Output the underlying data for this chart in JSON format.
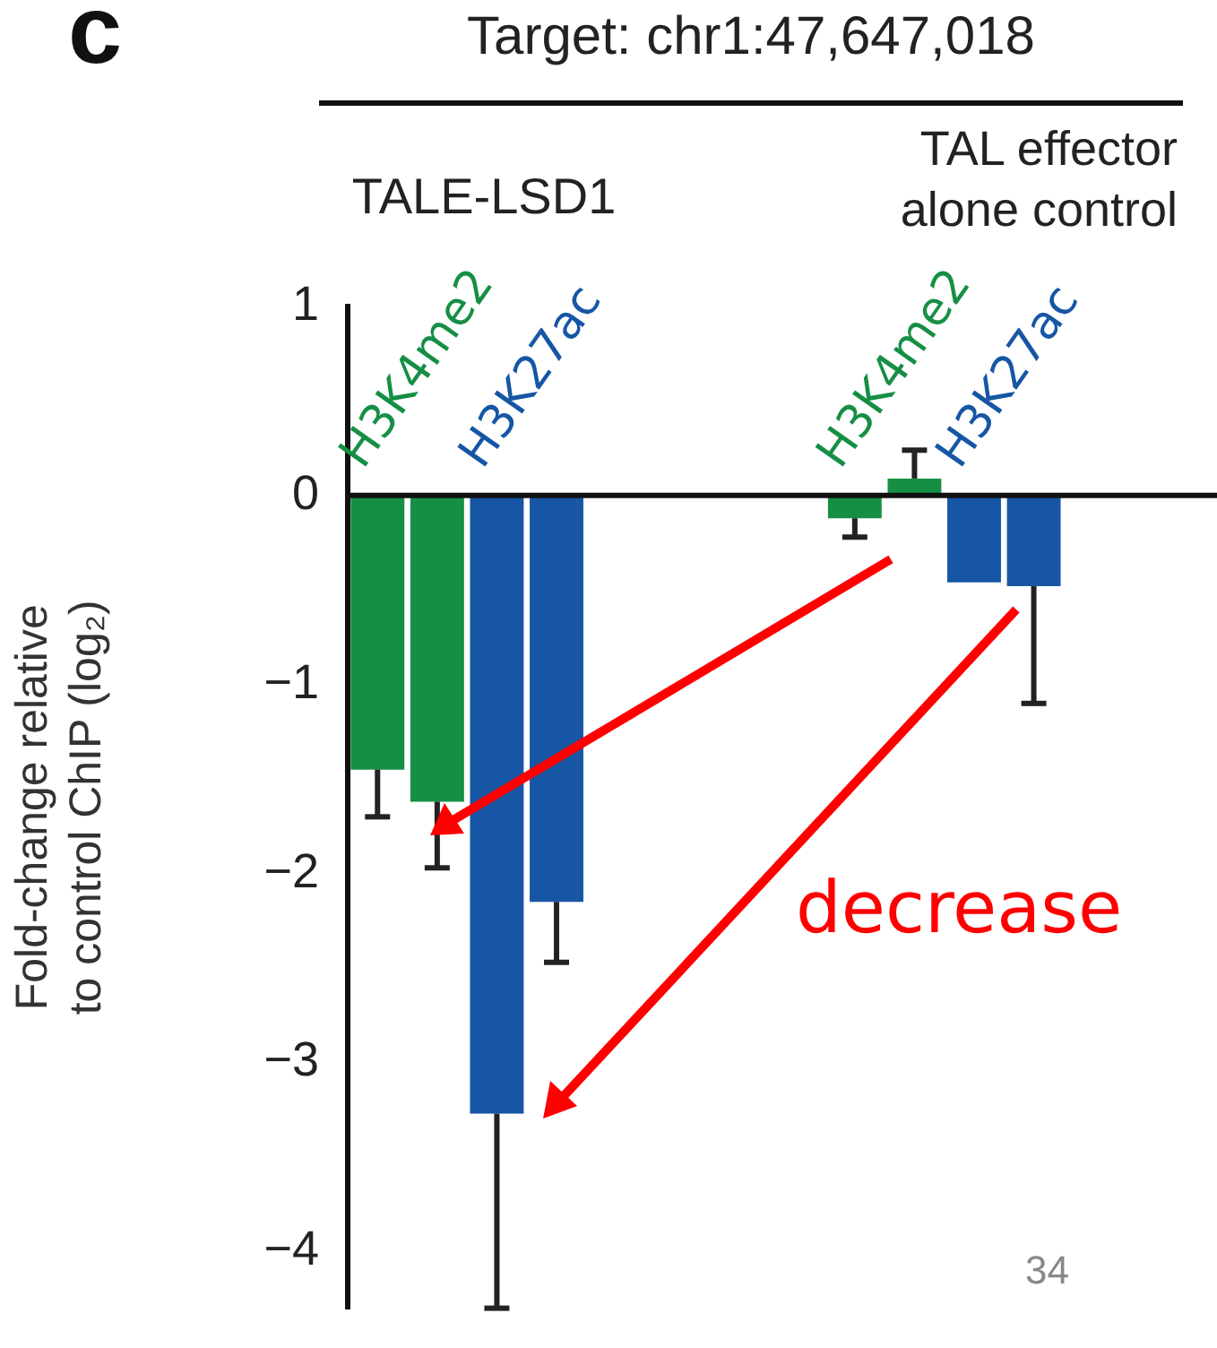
{
  "chart_data": {
    "type": "bar",
    "title": "Target: chr1:47,647,018",
    "ylabel": "Fold-change relative\nto control ChIP (log₂)",
    "categories": [
      null,
      null,
      null,
      null,
      null,
      null,
      null,
      null,
      null,
      null,
      null,
      null,
      null,
      null
    ],
    "series": [
      {
        "name": "H3K4me2",
        "color": "#168f45",
        "values": [
          -1.45,
          -1.62,
          null,
          null,
          null,
          null,
          null,
          null,
          -0.12,
          0.09,
          null,
          null,
          null,
          null
        ],
        "errors": [
          [
            -1.7,
            -1.45
          ],
          [
            -1.97,
            -1.62
          ],
          null,
          null,
          null,
          null,
          null,
          null,
          [
            -0.22,
            -0.12
          ],
          [
            0.09,
            0.24
          ],
          null,
          null,
          null,
          null
        ]
      },
      {
        "name": "H3K27ac",
        "color": "#1656a5",
        "values": [
          null,
          null,
          -3.27,
          -2.15,
          null,
          null,
          null,
          null,
          null,
          null,
          -0.46,
          -0.48,
          null,
          null
        ],
        "errors": [
          null,
          null,
          [
            -4.3,
            -3.27
          ],
          [
            -2.47,
            -2.15
          ],
          null,
          null,
          null,
          null,
          null,
          null,
          null,
          [
            -1.1,
            -0.48
          ],
          null,
          null
        ]
      }
    ],
    "ylim": [
      -4.3,
      1
    ],
    "yticks": [
      1,
      0,
      -1,
      -2,
      -3,
      -4
    ],
    "tick_labels": "y",
    "annotations": [
      "c",
      "TALE-LSD1",
      "TAL effector\nalone control",
      "decrease",
      "34"
    ]
  }
}
